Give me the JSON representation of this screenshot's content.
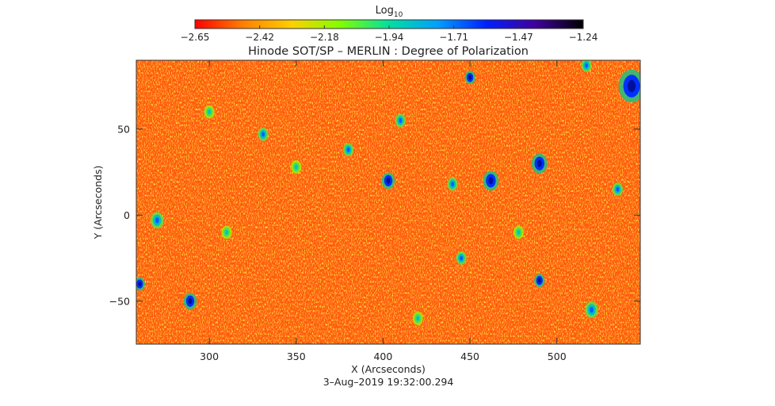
{
  "chart_data": {
    "type": "heatmap",
    "title": "Hinode SOT/SP – MERLIN : Degree of Polarization",
    "xlabel": "X (Arcseconds)",
    "ylabel": "Y (Arcseconds)",
    "timestamp": "3–Aug–2019 19:32:00.294",
    "colorbar": {
      "label": "Log",
      "label_subscript": "10",
      "ticks": [
        "−2.65",
        "−2.42",
        "−2.18",
        "−1.94",
        "−1.71",
        "−1.47",
        "−1.24"
      ],
      "range": [
        -2.65,
        -1.24
      ],
      "colormap": [
        "#ff0000",
        "#ff8000",
        "#ffd000",
        "#80ff00",
        "#00e0a0",
        "#00a0ff",
        "#0020ff",
        "#4000a0",
        "#000000"
      ]
    },
    "xlim": [
      258,
      548
    ],
    "ylim": [
      -75,
      90
    ],
    "x_ticks": [
      "300",
      "350",
      "400",
      "450",
      "500"
    ],
    "x_tick_values": [
      300,
      350,
      400,
      450,
      500
    ],
    "y_ticks": [
      "50",
      "0",
      "−50"
    ],
    "y_tick_values": [
      50,
      0,
      -50
    ],
    "background_color": "#ff5a10",
    "features": [
      {
        "x": 543,
        "y": 75,
        "size": 5,
        "level": "high"
      },
      {
        "x": 490,
        "y": 30,
        "size": 3,
        "level": "high"
      },
      {
        "x": 462,
        "y": 20,
        "size": 3,
        "level": "high"
      },
      {
        "x": 440,
        "y": 18,
        "size": 2,
        "level": "mid"
      },
      {
        "x": 403,
        "y": 20,
        "size": 2.5,
        "level": "high"
      },
      {
        "x": 380,
        "y": 38,
        "size": 2,
        "level": "mid"
      },
      {
        "x": 270,
        "y": -3,
        "size": 2.5,
        "level": "mid"
      },
      {
        "x": 289,
        "y": -50,
        "size": 2.5,
        "level": "high"
      },
      {
        "x": 490,
        "y": -38,
        "size": 2,
        "level": "high"
      },
      {
        "x": 520,
        "y": -55,
        "size": 2.5,
        "level": "mid"
      },
      {
        "x": 445,
        "y": -25,
        "size": 2,
        "level": "mid"
      },
      {
        "x": 331,
        "y": 47,
        "size": 2,
        "level": "mid"
      },
      {
        "x": 350,
        "y": 28,
        "size": 2,
        "level": "low"
      },
      {
        "x": 410,
        "y": 55,
        "size": 2,
        "level": "mid"
      },
      {
        "x": 450,
        "y": 80,
        "size": 2,
        "level": "high"
      },
      {
        "x": 517,
        "y": 87,
        "size": 2,
        "level": "mid"
      },
      {
        "x": 260,
        "y": -40,
        "size": 2,
        "level": "high"
      },
      {
        "x": 300,
        "y": 60,
        "size": 2,
        "level": "low"
      },
      {
        "x": 478,
        "y": -10,
        "size": 2,
        "level": "low"
      },
      {
        "x": 420,
        "y": -60,
        "size": 2,
        "level": "low"
      },
      {
        "x": 310,
        "y": -10,
        "size": 2,
        "level": "low"
      },
      {
        "x": 535,
        "y": 15,
        "size": 2,
        "level": "mid"
      }
    ]
  }
}
